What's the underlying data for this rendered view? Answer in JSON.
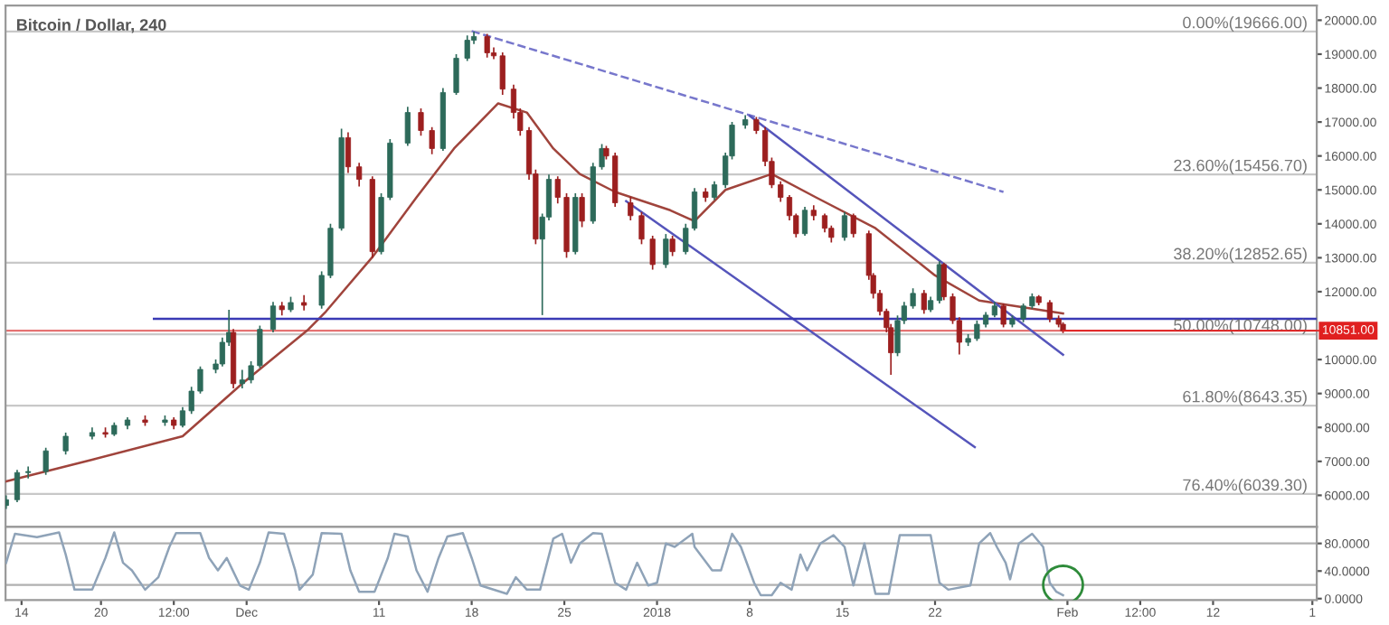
{
  "chart_data": [
    {
      "type": "candlestick",
      "title": "Bitcoin / Dollar, 240",
      "x": [
        "2017-11-12T20:00",
        "2017-11-13T16:00",
        "2017-11-14T12:00",
        "2017-11-15T20:00",
        "2017-11-17T08:00",
        "2017-11-19T08:00",
        "2017-11-20T08:00",
        "2017-11-21T00:00",
        "2017-11-22T00:00",
        "2017-11-23T08:00",
        "2017-11-24T20:00",
        "2017-11-25T12:00",
        "2017-11-26T04:00",
        "2017-11-26T20:00",
        "2017-11-27T12:00",
        "2017-11-28T16:00",
        "2017-11-29T04:00",
        "2017-11-29T16:00",
        "2017-11-30T00:00",
        "2017-11-30T16:00",
        "2017-12-01T08:00",
        "2017-12-02T00:00",
        "2017-12-03T00:00",
        "2017-12-03T16:00",
        "2017-12-04T08:00",
        "2017-12-05T08:00",
        "2017-12-06T16:00",
        "2017-12-07T08:00",
        "2017-12-08T04:00",
        "2017-12-08T16:00",
        "2017-12-09T12:00",
        "2017-12-10T12:00",
        "2017-12-11T04:00",
        "2017-12-11T20:00",
        "2017-12-13T04:00",
        "2017-12-14T04:00",
        "2017-12-15T00:00",
        "2017-12-15T20:00",
        "2017-12-16T20:00",
        "2017-12-17T16:00",
        "2017-12-18T04:00",
        "2017-12-19T04:00",
        "2017-12-19T16:00",
        "2017-12-20T08:00",
        "2017-12-21T04:00",
        "2017-12-21T16:00",
        "2017-12-22T08:00",
        "2017-12-22T20:00",
        "2017-12-23T08:00",
        "2017-12-23T20:00",
        "2017-12-24T12:00",
        "2017-12-25T04:00",
        "2017-12-25T20:00",
        "2017-12-26T08:00",
        "2017-12-27T04:00",
        "2017-12-27T20:00",
        "2017-12-28T04:00",
        "2017-12-28T20:00",
        "2017-12-30T00:00",
        "2017-12-30T20:00",
        "2017-12-31T16:00",
        "2018-01-01T16:00",
        "2018-01-02T04:00",
        "2018-01-03T04:00",
        "2018-01-03T20:00",
        "2018-01-04T16:00",
        "2018-01-05T08:00",
        "2018-01-06T04:00",
        "2018-01-06T16:00",
        "2018-01-07T16:00",
        "2018-01-08T12:00",
        "2018-01-09T04:00",
        "2018-01-09T16:00",
        "2018-01-10T08:00",
        "2018-01-11T00:00",
        "2018-01-11T12:00",
        "2018-01-12T04:00",
        "2018-01-12T20:00",
        "2018-01-13T16:00",
        "2018-01-14T04:00",
        "2018-01-15T04:00",
        "2018-01-15T20:00",
        "2018-01-17T00:00",
        "2018-01-17T08:00",
        "2018-01-17T20:00",
        "2018-01-18T08:00",
        "2018-01-18T16:00",
        "2018-01-19T04:00",
        "2018-01-19T16:00",
        "2018-01-20T08:00",
        "2018-01-21T04:00",
        "2018-01-21T16:00",
        "2018-01-22T08:00",
        "2018-01-22T16:00",
        "2018-01-23T08:00",
        "2018-01-23T20:00",
        "2018-01-24T12:00",
        "2018-01-25T04:00",
        "2018-01-25T20:00",
        "2018-01-26T12:00",
        "2018-01-27T04:00",
        "2018-01-27T20:00",
        "2018-01-28T16:00",
        "2018-01-29T08:00",
        "2018-01-29T20:00",
        "2018-01-30T16:00",
        "2018-01-31T08:00",
        "2018-01-31T16:00"
      ],
      "ohlc": [
        [
          5700,
          6000,
          5600,
          5870
        ],
        [
          5870,
          6750,
          5800,
          6670
        ],
        [
          6670,
          6850,
          6500,
          6700
        ],
        [
          6700,
          7400,
          6600,
          7310
        ],
        [
          7310,
          7850,
          7200,
          7740
        ],
        [
          7740,
          8000,
          7650,
          7850
        ],
        [
          7850,
          8000,
          7700,
          7800
        ],
        [
          7800,
          8150,
          7750,
          8060
        ],
        [
          8060,
          8300,
          7950,
          8220
        ],
        [
          8220,
          8350,
          8050,
          8150
        ],
        [
          8150,
          8350,
          8050,
          8220
        ],
        [
          8220,
          8300,
          7950,
          8060
        ],
        [
          8060,
          8600,
          8000,
          8490
        ],
        [
          8490,
          9200,
          8400,
          9070
        ],
        [
          9070,
          9800,
          9000,
          9710
        ],
        [
          9710,
          10000,
          9600,
          9870
        ],
        [
          9870,
          10650,
          9800,
          10510
        ],
        [
          10510,
          11470,
          10400,
          10800
        ],
        [
          10800,
          10900,
          9150,
          9290
        ],
        [
          9290,
          9700,
          9150,
          9400
        ],
        [
          9400,
          9950,
          9300,
          9820
        ],
        [
          9820,
          11000,
          9750,
          10890
        ],
        [
          10890,
          11700,
          10800,
          11580
        ],
        [
          11580,
          11700,
          11300,
          11470
        ],
        [
          11470,
          11850,
          11400,
          11680
        ],
        [
          11680,
          11900,
          11450,
          11600
        ],
        [
          11600,
          12600,
          11500,
          12480
        ],
        [
          12480,
          14000,
          12400,
          13870
        ],
        [
          13870,
          16800,
          13800,
          16540
        ],
        [
          16540,
          16700,
          15500,
          15680
        ],
        [
          15680,
          15800,
          15100,
          15310
        ],
        [
          15310,
          15400,
          13000,
          13180
        ],
        [
          13180,
          14900,
          13100,
          14780
        ],
        [
          14780,
          16500,
          14700,
          16380
        ],
        [
          16380,
          17450,
          16300,
          17280
        ],
        [
          17280,
          17400,
          16600,
          16750
        ],
        [
          16750,
          16850,
          16050,
          16220
        ],
        [
          16220,
          18000,
          16150,
          17870
        ],
        [
          17870,
          19000,
          17800,
          18880
        ],
        [
          18880,
          19550,
          18800,
          19410
        ],
        [
          19410,
          19666,
          19300,
          19520
        ],
        [
          19520,
          19600,
          18900,
          19040
        ],
        [
          19040,
          19200,
          18850,
          18950
        ],
        [
          18950,
          19050,
          17800,
          17970
        ],
        [
          17970,
          18100,
          17100,
          17280
        ],
        [
          17280,
          17400,
          16600,
          16750
        ],
        [
          16750,
          16850,
          15300,
          15470
        ],
        [
          15470,
          15600,
          13400,
          13550
        ],
        [
          13550,
          14300,
          11310,
          14200
        ],
        [
          14200,
          15450,
          14100,
          15310
        ],
        [
          15310,
          15400,
          14600,
          14780
        ],
        [
          14780,
          14900,
          13000,
          13180
        ],
        [
          13180,
          14900,
          13100,
          14780
        ],
        [
          14780,
          14900,
          13900,
          14080
        ],
        [
          14080,
          15800,
          14000,
          15680
        ],
        [
          15680,
          16350,
          15600,
          16220
        ],
        [
          16220,
          16300,
          15900,
          16000
        ],
        [
          16000,
          16100,
          14500,
          14620
        ],
        [
          14620,
          14800,
          14100,
          14240
        ],
        [
          14240,
          14350,
          13400,
          13550
        ],
        [
          13550,
          13650,
          12650,
          12800
        ],
        [
          12800,
          13700,
          12700,
          13550
        ],
        [
          13550,
          13650,
          13050,
          13180
        ],
        [
          13180,
          14000,
          13100,
          13870
        ],
        [
          13870,
          15050,
          13800,
          14940
        ],
        [
          14940,
          15050,
          14650,
          14780
        ],
        [
          14780,
          15250,
          14700,
          15150
        ],
        [
          15150,
          16100,
          15050,
          16000
        ],
        [
          16000,
          17000,
          15900,
          16910
        ],
        [
          16910,
          17200,
          16800,
          17070
        ],
        [
          17070,
          17150,
          16650,
          16750
        ],
        [
          16750,
          16850,
          15700,
          15840
        ],
        [
          15840,
          15950,
          15050,
          15150
        ],
        [
          15150,
          15250,
          14650,
          14780
        ],
        [
          14780,
          14850,
          14100,
          14240
        ],
        [
          14240,
          14300,
          13600,
          13710
        ],
        [
          13710,
          14500,
          13650,
          14400
        ],
        [
          14400,
          14550,
          14100,
          14240
        ],
        [
          14240,
          14300,
          13750,
          13870
        ],
        [
          13870,
          13950,
          13450,
          13600
        ],
        [
          13600,
          14350,
          13500,
          14240
        ],
        [
          14240,
          14300,
          13600,
          13710
        ],
        [
          13710,
          13800,
          12350,
          12480
        ],
        [
          12480,
          12550,
          11800,
          11950
        ],
        [
          11950,
          12050,
          11300,
          11420
        ],
        [
          11420,
          11500,
          10800,
          10940
        ],
        [
          10940,
          11050,
          9550,
          10200
        ],
        [
          10200,
          11300,
          10100,
          11150
        ],
        [
          11150,
          11700,
          11050,
          11580
        ],
        [
          11580,
          12100,
          11500,
          11950
        ],
        [
          11950,
          12050,
          11350,
          11470
        ],
        [
          11470,
          11850,
          11400,
          11740
        ],
        [
          11740,
          12900,
          11650,
          12800
        ],
        [
          12800,
          12850,
          11750,
          11850
        ],
        [
          11850,
          11950,
          11050,
          11150
        ],
        [
          11150,
          11250,
          10150,
          10510
        ],
        [
          10510,
          10750,
          10400,
          10620
        ],
        [
          10620,
          11150,
          10550,
          11040
        ],
        [
          11040,
          11400,
          10950,
          11310
        ],
        [
          11310,
          11700,
          11250,
          11580
        ],
        [
          11580,
          11650,
          10950,
          11040
        ],
        [
          11040,
          11300,
          10950,
          11200
        ],
        [
          11200,
          11650,
          11100,
          11580
        ],
        [
          11580,
          11950,
          11500,
          11850
        ],
        [
          11850,
          11900,
          11600,
          11680
        ],
        [
          11680,
          11750,
          11100,
          11200
        ],
        [
          11200,
          11300,
          10950,
          11040
        ],
        [
          11040,
          11100,
          10780,
          10851
        ]
      ],
      "colors": [
        "#2d6a5a",
        "#2d6a5a",
        "#2d6a5a",
        "#2d6a5a",
        "#2d6a5a",
        "#2d6a5a",
        "#9c1f1f",
        "#2d6a5a",
        "#2d6a5a",
        "#9c1f1f",
        "#2d6a5a",
        "#9c1f1f",
        "#2d6a5a",
        "#2d6a5a",
        "#2d6a5a",
        "#2d6a5a",
        "#2d6a5a",
        "#2d6a5a",
        "#9c1f1f",
        "#2d6a5a",
        "#2d6a5a",
        "#2d6a5a",
        "#2d6a5a",
        "#9c1f1f",
        "#2d6a5a",
        "#9c1f1f",
        "#2d6a5a",
        "#2d6a5a",
        "#2d6a5a",
        "#9c1f1f",
        "#9c1f1f",
        "#9c1f1f",
        "#2d6a5a",
        "#2d6a5a",
        "#2d6a5a",
        "#9c1f1f",
        "#9c1f1f",
        "#2d6a5a",
        "#2d6a5a",
        "#2d6a5a",
        "#2d6a5a",
        "#9c1f1f",
        "#9c1f1f",
        "#9c1f1f",
        "#9c1f1f",
        "#9c1f1f",
        "#9c1f1f",
        "#9c1f1f",
        "#2d6a5a",
        "#2d6a5a",
        "#9c1f1f",
        "#9c1f1f",
        "#2d6a5a",
        "#9c1f1f",
        "#2d6a5a",
        "#2d6a5a",
        "#9c1f1f",
        "#9c1f1f",
        "#9c1f1f",
        "#9c1f1f",
        "#9c1f1f",
        "#2d6a5a",
        "#9c1f1f",
        "#2d6a5a",
        "#2d6a5a",
        "#9c1f1f",
        "#2d6a5a",
        "#2d6a5a",
        "#2d6a5a",
        "#2d6a5a",
        "#9c1f1f",
        "#9c1f1f",
        "#9c1f1f",
        "#9c1f1f",
        "#9c1f1f",
        "#9c1f1f",
        "#2d6a5a",
        "#9c1f1f",
        "#9c1f1f",
        "#9c1f1f",
        "#2d6a5a",
        "#9c1f1f",
        "#9c1f1f",
        "#9c1f1f",
        "#9c1f1f",
        "#9c1f1f",
        "#9c1f1f",
        "#2d6a5a",
        "#2d6a5a",
        "#2d6a5a",
        "#9c1f1f",
        "#2d6a5a",
        "#2d6a5a",
        "#9c1f1f",
        "#9c1f1f",
        "#9c1f1f",
        "#2d6a5a",
        "#2d6a5a",
        "#2d6a5a",
        "#2d6a5a",
        "#9c1f1f",
        "#2d6a5a",
        "#2d6a5a",
        "#2d6a5a",
        "#9c1f1f",
        "#9c1f1f",
        "#9c1f1f",
        "#9c1f1f"
      ],
      "series": [
        {
          "type": "line",
          "color": "#a0443c",
          "x": [
            "2017-11-12T20:00",
            "2017-11-19T08:00",
            "2017-11-26T04:00",
            "2017-11-30T16:00",
            "2017-12-05T16:00",
            "2017-12-07T00:00",
            "2017-12-10T12:00",
            "2017-12-13T20:00",
            "2017-12-16T16:00",
            "2017-12-20T00:00",
            "2017-12-22T04:00",
            "2017-12-24T04:00",
            "2017-12-26T04:00",
            "2017-12-28T20:00",
            "2018-01-02T00:00",
            "2018-01-03T20:00",
            "2018-01-06T04:00",
            "2018-01-09T16:00",
            "2018-01-13T00:00",
            "2018-01-17T12:00",
            "2018-01-22T00:00",
            "2018-01-25T08:00",
            "2018-01-28T00:00",
            "2018-01-31T16:00"
          ],
          "values": [
            6410,
            7050,
            7740,
            9290,
            10890,
            11420,
            13020,
            14780,
            16220,
            17550,
            17280,
            16220,
            15470,
            14940,
            14400,
            14080,
            15000,
            15470,
            14780,
            13870,
            12480,
            11740,
            11580,
            11360
          ]
        },
        {
          "type": "line",
          "color": "#7777cc",
          "line_style": "dashed",
          "x": [
            "2017-12-18T00:00",
            "2018-01-27T04:00"
          ],
          "values": [
            19680,
            14940
          ]
        },
        {
          "type": "line",
          "color": "#5555bb",
          "x": [
            "2018-01-08T00:00",
            "2018-01-31T16:00"
          ],
          "values": [
            17180,
            10140
          ]
        },
        {
          "type": "line",
          "color": "#5555bb",
          "x": [
            "2017-12-29T16:00",
            "2018-01-25T00:00"
          ],
          "values": [
            14670,
            7420
          ]
        },
        {
          "type": "line",
          "color": "#3a3ab5",
          "x": [
            "2017-11-24T00:00",
            "2018-02-19T20:00"
          ],
          "values": [
            11200,
            11200
          ]
        }
      ],
      "ref_lines": [
        {
          "axis": "y",
          "value": 19666,
          "label": "0.00%(19666.00)",
          "color": "#c8c8c8"
        },
        {
          "axis": "y",
          "value": 15456.7,
          "label": "23.60%(15456.70)",
          "color": "#c8c8c8"
        },
        {
          "axis": "y",
          "value": 12852.65,
          "label": "38.20%(12852.65)",
          "color": "#c8c8c8"
        },
        {
          "axis": "y",
          "value": 10748,
          "label": "50.00%(10748.00)",
          "color": "#c8c8c8"
        },
        {
          "axis": "y",
          "value": 8643.35,
          "label": "61.80%(8643.35)",
          "color": "#c8c8c8"
        },
        {
          "axis": "y",
          "value": 6039.3,
          "label": "76.40%(6039.30)",
          "color": "#c8c8c8"
        },
        {
          "axis": "y",
          "value": 10851,
          "color": "#e57373"
        }
      ],
      "annotations": [
        {
          "text": "10851.00",
          "x": "2018-01-31T16:00",
          "y": 10851
        }
      ],
      "xlim": [
        "2017-11-12T19:00",
        "2018-02-19T20:00"
      ],
      "ylim": [
        5070,
        20430
      ],
      "yticks": [
        {
          "value": 6000,
          "label": "6000.00"
        },
        {
          "value": 7000,
          "label": "7000.00"
        },
        {
          "value": 8000,
          "label": "8000.00"
        },
        {
          "value": 9000,
          "label": "9000.00"
        },
        {
          "value": 10000,
          "label": "10000.00"
        },
        {
          "value": 12000,
          "label": "12000.00"
        },
        {
          "value": 13000,
          "label": "13000.00"
        },
        {
          "value": 14000,
          "label": "14000.00"
        },
        {
          "value": 15000,
          "label": "15000.00"
        },
        {
          "value": 16000,
          "label": "16000.00"
        },
        {
          "value": 17000,
          "label": "17000.00"
        },
        {
          "value": 18000,
          "label": "18000.00"
        },
        {
          "value": 19000,
          "label": "19000.00"
        },
        {
          "value": 20000,
          "label": "20000.00"
        }
      ],
      "tick_labels": "y"
    },
    {
      "type": "line",
      "series": [
        {
          "color": "#8fa3b8",
          "x": [
            "2017-11-12T20:00",
            "2017-11-13T12:00",
            "2017-11-15T04:00",
            "2017-11-16T20:00",
            "2017-11-17T08:00",
            "2017-11-18T00:00",
            "2017-11-19T08:00",
            "2017-11-20T08:00",
            "2017-11-21T00:00",
            "2017-11-21T16:00",
            "2017-11-22T08:00",
            "2017-11-23T08:00",
            "2017-11-24T08:00",
            "2017-11-25T04:00",
            "2017-11-25T16:00",
            "2017-11-27T12:00",
            "2017-11-28T04:00",
            "2017-11-28T20:00",
            "2017-11-29T12:00",
            "2017-11-30T12:00",
            "2017-12-01T04:00",
            "2017-12-02T00:00",
            "2017-12-02T16:00",
            "2017-12-03T20:00",
            "2017-12-04T16:00",
            "2017-12-05T00:00",
            "2017-12-06T00:00",
            "2017-12-06T16:00",
            "2017-12-08T04:00",
            "2017-12-08T20:00",
            "2017-12-09T12:00",
            "2017-12-10T16:00",
            "2017-12-11T16:00",
            "2017-12-12T04:00",
            "2017-12-13T04:00",
            "2017-12-13T20:00",
            "2017-12-14T16:00",
            "2017-12-15T12:00",
            "2017-12-16T04:00",
            "2017-12-17T08:00",
            "2017-12-18T00:00",
            "2017-12-18T16:00",
            "2017-12-20T16:00",
            "2017-12-21T08:00",
            "2017-12-22T04:00",
            "2017-12-23T04:00",
            "2017-12-24T04:00",
            "2017-12-24T20:00",
            "2017-12-25T12:00",
            "2017-12-26T04:00",
            "2017-12-27T04:00",
            "2017-12-27T20:00",
            "2017-12-28T20:00",
            "2017-12-29T16:00",
            "2017-12-30T12:00",
            "2017-12-31T08:00",
            "2018-01-01T00:00",
            "2018-01-01T16:00",
            "2018-01-02T08:00",
            "2018-01-03T16:00",
            "2018-01-03T20:00",
            "2018-01-05T04:00",
            "2018-01-05T20:00",
            "2018-01-06T16:00",
            "2018-01-07T08:00",
            "2018-01-08T08:00",
            "2018-01-08T20:00",
            "2018-01-09T16:00",
            "2018-01-10T08:00",
            "2018-01-11T04:00",
            "2018-01-11T20:00",
            "2018-01-12T08:00",
            "2018-01-13T08:00",
            "2018-01-14T08:00",
            "2018-01-15T04:00",
            "2018-01-15T20:00",
            "2018-01-16T16:00",
            "2018-01-17T12:00",
            "2018-01-18T12:00",
            "2018-01-19T08:00",
            "2018-01-21T16:00",
            "2018-01-22T08:00",
            "2018-01-23T00:00",
            "2018-01-24T16:00",
            "2018-01-25T08:00",
            "2018-01-26T04:00",
            "2018-01-26T16:00",
            "2018-01-27T08:00",
            "2018-01-27T16:00",
            "2018-01-28T08:00",
            "2018-01-29T08:00",
            "2018-01-30T04:00",
            "2018-01-30T16:00",
            "2018-01-31T04:00",
            "2018-01-31T16:00"
          ],
          "values": [
            52,
            94,
            89,
            96,
            64,
            13,
            13,
            59,
            96,
            52,
            41,
            13,
            31,
            75,
            95,
            95,
            59,
            41,
            59,
            19,
            13,
            52,
            96,
            94,
            41,
            13,
            35,
            95,
            94,
            41,
            10,
            10,
            59,
            94,
            90,
            41,
            10,
            59,
            90,
            95,
            59,
            19,
            7,
            31,
            13,
            13,
            87,
            94,
            52,
            80,
            95,
            94,
            23,
            13,
            52,
            19,
            23,
            80,
            75,
            94,
            75,
            41,
            41,
            94,
            75,
            23,
            5,
            5,
            23,
            13,
            64,
            41,
            80,
            92,
            75,
            19,
            80,
            7,
            7,
            92,
            92,
            23,
            13,
            19,
            80,
            95,
            75,
            52,
            28,
            80,
            94,
            75,
            23,
            10,
            5
          ]
        }
      ],
      "ref_lines": [
        {
          "axis": "y",
          "value": 80,
          "color": "#b0b0b0"
        },
        {
          "axis": "y",
          "value": 20,
          "color": "#b0b0b0"
        }
      ],
      "xlim": [
        "2017-11-12T19:00",
        "2018-02-19T20:00"
      ],
      "ylim": [
        -2,
        104
      ],
      "xticks": [
        {
          "value": "2017-11-14",
          "label": "14"
        },
        {
          "value": "2017-11-20",
          "label": "20"
        },
        {
          "value": "2017-11-25T12:00",
          "label": "12:00"
        },
        {
          "value": "2017-12-01",
          "label": "Dec"
        },
        {
          "value": "2017-12-11",
          "label": "11"
        },
        {
          "value": "2017-12-18",
          "label": "18"
        },
        {
          "value": "2017-12-25",
          "label": "25"
        },
        {
          "value": "2018-01-01",
          "label": "2018"
        },
        {
          "value": "2018-01-08",
          "label": "8"
        },
        {
          "value": "2018-01-15",
          "label": "15"
        },
        {
          "value": "2018-01-22",
          "label": "22"
        },
        {
          "value": "2018-02-01",
          "label": "Feb"
        },
        {
          "value": "2018-02-06T12:00",
          "label": "12:00"
        },
        {
          "value": "2018-02-12",
          "label": "12"
        },
        {
          "value": "2018-02-19T12:00",
          "label": "1"
        }
      ],
      "yticks": [
        {
          "value": 0,
          "label": "0.0000"
        },
        {
          "value": 40,
          "label": "40.0000"
        },
        {
          "value": 80,
          "label": "80.0000"
        }
      ]
    }
  ]
}
